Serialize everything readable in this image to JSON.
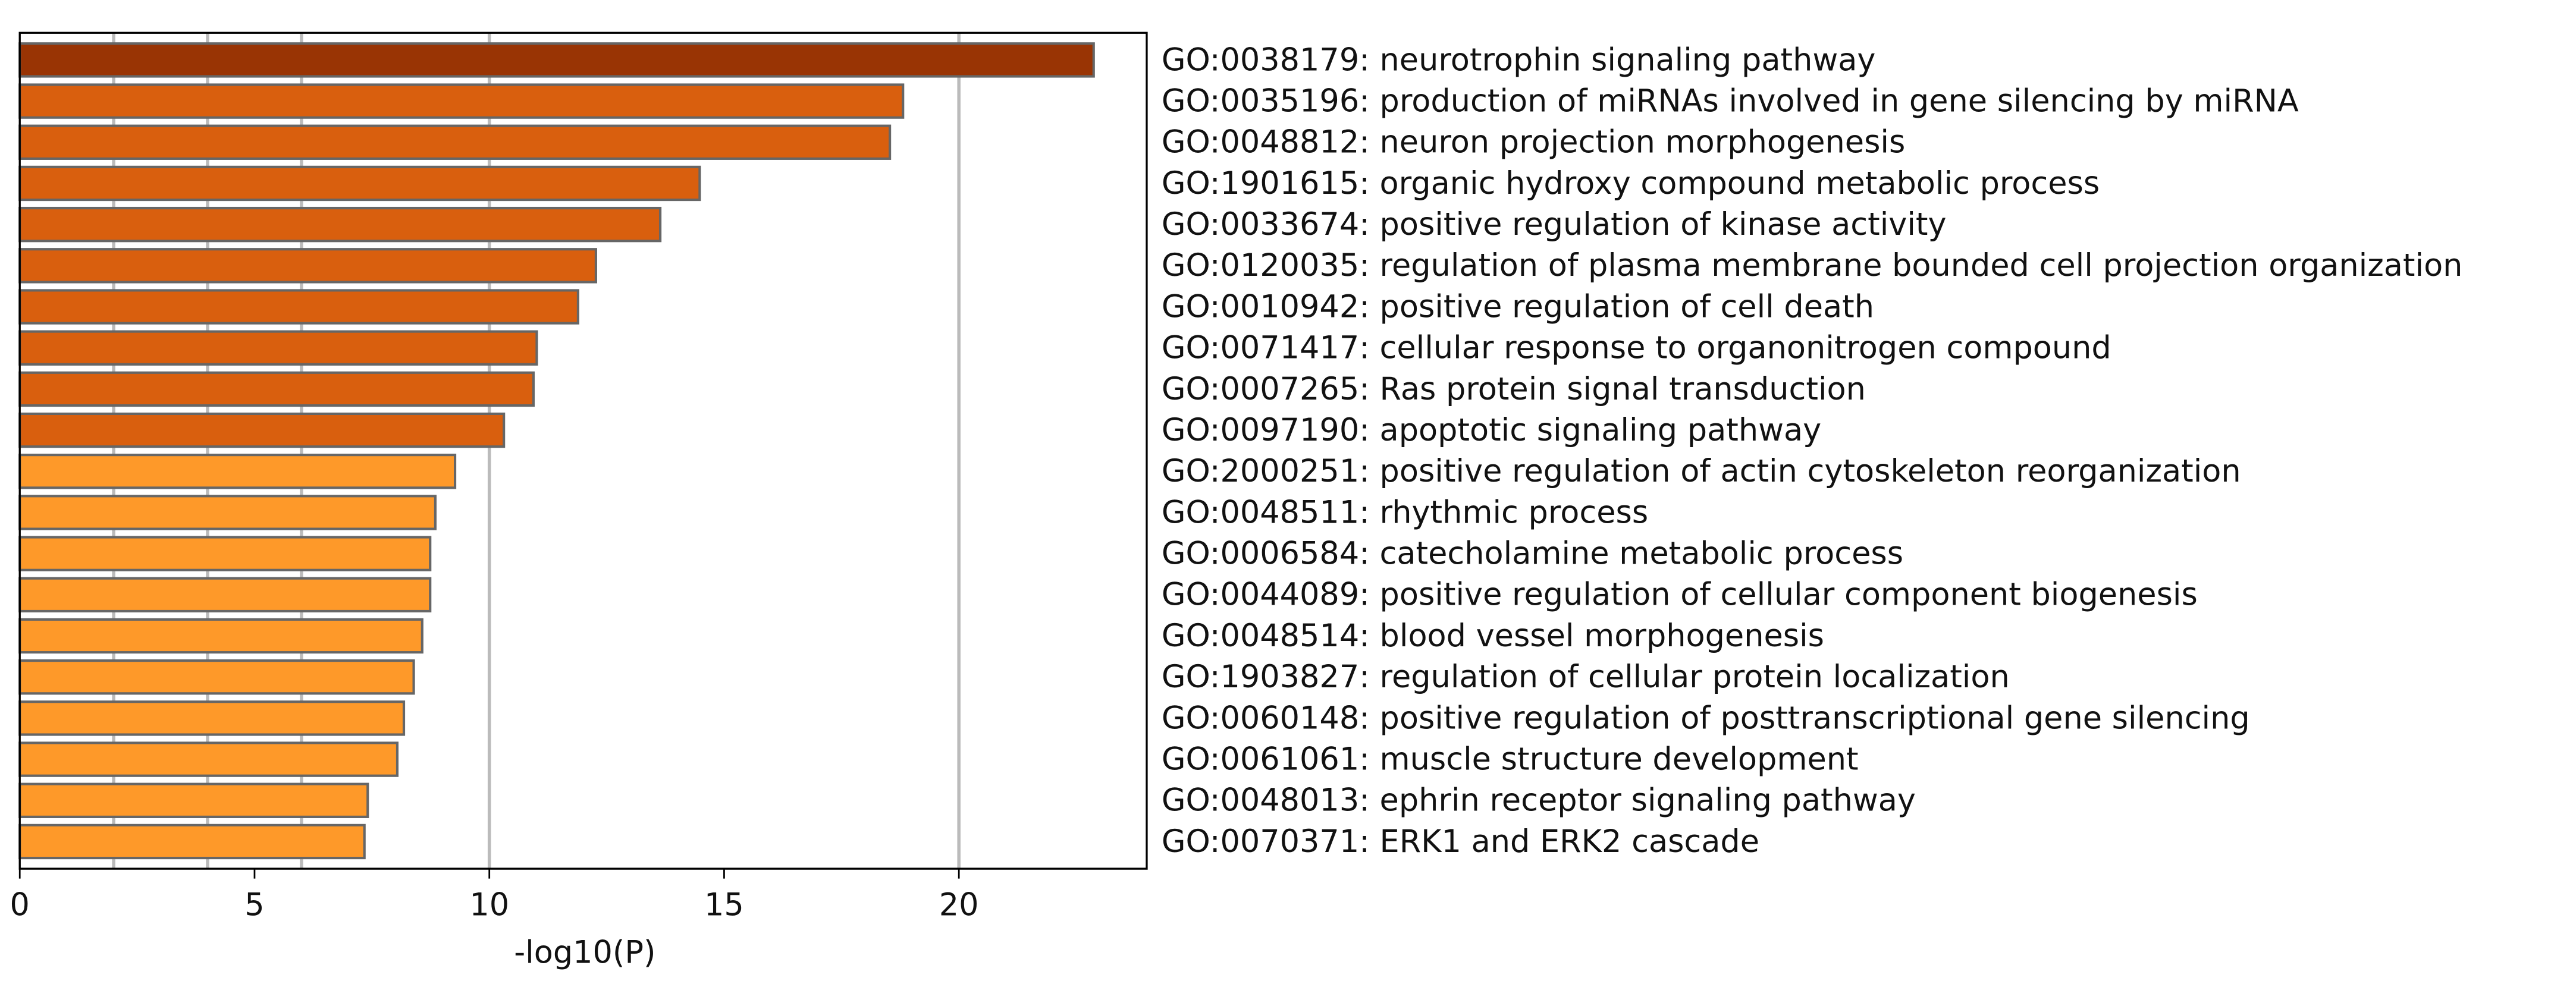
{
  "chart_data": {
    "type": "barh",
    "x_label": "-log10(P)",
    "categories": [
      "GO:0038179: neurotrophin signaling pathway",
      "GO:0035196: production of miRNAs involved in gene silencing by miRNA",
      "GO:0048812: neuron projection morphogenesis",
      "GO:1901615: organic hydroxy compound metabolic process",
      "GO:0033674: positive regulation of kinase activity",
      "GO:0120035: regulation of plasma membrane bounded cell projection organization",
      "GO:0010942: positive regulation of cell death",
      "GO:0071417: cellular response to organonitrogen compound",
      "GO:0007265: Ras protein signal transduction",
      "GO:0097190: apoptotic signaling pathway",
      "GO:2000251: positive regulation of actin cytoskeleton reorganization",
      "GO:0048511: rhythmic process",
      "GO:0006584: catecholamine metabolic process",
      "GO:0044089: positive regulation of cellular component biogenesis",
      "GO:0048514: blood vessel morphogenesis",
      "GO:1903827: regulation of cellular protein localization",
      "GO:0060148: positive regulation of posttranscriptional gene silencing",
      "GO:0061061: muscle structure development",
      "GO:0048013: ephrin receptor signaling pathway",
      "GO:0070371: ERK1 and ERK2 cascade"
    ],
    "values": [
      22.87,
      18.81,
      18.53,
      14.48,
      13.64,
      12.27,
      11.89,
      11.01,
      10.94,
      10.31,
      9.27,
      8.85,
      8.74,
      8.74,
      8.57,
      8.39,
      8.18,
      8.04,
      7.41,
      7.34
    ],
    "colors": [
      "#993404",
      "#d95f0e",
      "#d95f0e",
      "#d95f0e",
      "#d95f0e",
      "#d95f0e",
      "#d95f0e",
      "#d95f0e",
      "#d95f0e",
      "#d95f0e",
      "#fe9929",
      "#fe9929",
      "#fe9929",
      "#fe9929",
      "#fe9929",
      "#fe9929",
      "#fe9929",
      "#fe9929",
      "#fe9929",
      "#fe9929"
    ],
    "xlim": [
      0,
      24
    ],
    "xticks": [
      0,
      5,
      10,
      15,
      20
    ],
    "grid_lines": [
      2,
      4,
      6,
      10,
      20
    ]
  }
}
